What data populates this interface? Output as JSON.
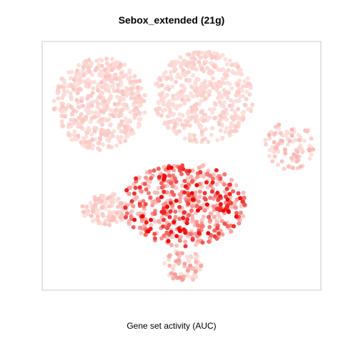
{
  "chart_data": {
    "type": "scatter",
    "title": "Sebox_extended (21g)",
    "xlabel": "Gene set activity (AUC)",
    "ylabel": "",
    "axes_visible": false,
    "grid": false,
    "legend": "none",
    "point_colors": {
      "low": "#fde0dc",
      "high": "#ee0000"
    },
    "clusters": [
      {
        "name": "",
        "x": [
          75,
          205
        ],
        "y": [
          80,
          210
        ],
        "n": 520,
        "activity": [
          0.0,
          0.12
        ]
      },
      {
        "name": "",
        "x": [
          215,
          355
        ],
        "y": [
          72,
          200
        ],
        "n": 480,
        "activity": [
          0.0,
          0.1
        ]
      },
      {
        "name": "",
        "x": [
          370,
          440
        ],
        "y": [
          170,
          238
        ],
        "n": 90,
        "activity": [
          0.0,
          0.2
        ]
      },
      {
        "name": "",
        "x": [
          115,
          180
        ],
        "y": [
          270,
          315
        ],
        "n": 110,
        "activity": [
          0.0,
          0.15
        ]
      },
      {
        "name": "",
        "x": [
          170,
          345
        ],
        "y": [
          228,
          345
        ],
        "n": 520,
        "activity": [
          0.1,
          1.0
        ]
      },
      {
        "name": "",
        "x": [
          228,
          285
        ],
        "y": [
          350,
          395
        ],
        "n": 70,
        "activity": [
          0.0,
          0.35
        ]
      }
    ]
  }
}
